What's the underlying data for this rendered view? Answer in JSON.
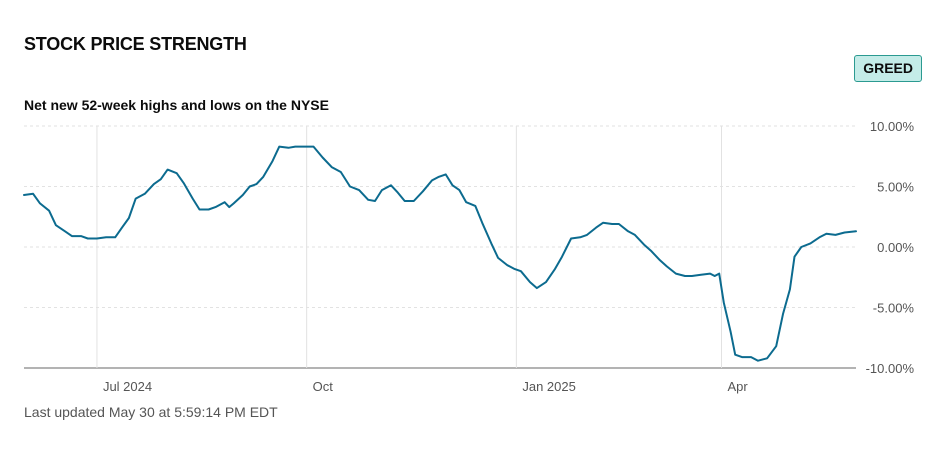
{
  "header": {
    "title": "STOCK PRICE STRENGTH",
    "badge": "GREED",
    "subtitle": "Net new 52-week highs and lows on the NYSE"
  },
  "footer": {
    "updated": "Last updated May 30 at 5:59:14 PM EDT"
  },
  "colors": {
    "line": "#0c6b8f",
    "badge_bg": "#c4ece8",
    "badge_border": "#2b9a91"
  },
  "chart_data": {
    "type": "line",
    "title": "Net new 52-week highs and lows on the NYSE",
    "x_ticks": [
      {
        "label": "Jul 2024",
        "x": "2024-07-01"
      },
      {
        "label": "Oct",
        "x": "2024-10-01"
      },
      {
        "label": "Jan 2025",
        "x": "2025-01-01"
      },
      {
        "label": "Apr",
        "x": "2025-04-01"
      }
    ],
    "y_ticks": [
      {
        "label": "10.00%",
        "value": 10
      },
      {
        "label": "5.00%",
        "value": 5
      },
      {
        "label": "0.00%",
        "value": 0
      },
      {
        "label": "-5.00%",
        "value": -5
      },
      {
        "label": "-10.00%",
        "value": -10
      }
    ],
    "xlim": [
      "2024-05-30",
      "2025-05-30"
    ],
    "ylim": [
      -10,
      10
    ],
    "grid": true,
    "series": [
      {
        "values": [
          {
            "x": "2024-05-30",
            "y": 4.3
          },
          {
            "x": "2024-06-03",
            "y": 4.4
          },
          {
            "x": "2024-06-06",
            "y": 3.6
          },
          {
            "x": "2024-06-10",
            "y": 3.0
          },
          {
            "x": "2024-06-13",
            "y": 1.8
          },
          {
            "x": "2024-06-17",
            "y": 1.3
          },
          {
            "x": "2024-06-20",
            "y": 0.9
          },
          {
            "x": "2024-06-24",
            "y": 0.9
          },
          {
            "x": "2024-06-27",
            "y": 0.7
          },
          {
            "x": "2024-07-01",
            "y": 0.7
          },
          {
            "x": "2024-07-05",
            "y": 0.8
          },
          {
            "x": "2024-07-09",
            "y": 0.8
          },
          {
            "x": "2024-07-12",
            "y": 1.6
          },
          {
            "x": "2024-07-15",
            "y": 2.4
          },
          {
            "x": "2024-07-18",
            "y": 4.0
          },
          {
            "x": "2024-07-22",
            "y": 4.4
          },
          {
            "x": "2024-07-26",
            "y": 5.2
          },
          {
            "x": "2024-07-29",
            "y": 5.6
          },
          {
            "x": "2024-08-01",
            "y": 6.4
          },
          {
            "x": "2024-08-05",
            "y": 6.1
          },
          {
            "x": "2024-08-08",
            "y": 5.3
          },
          {
            "x": "2024-08-12",
            "y": 4.0
          },
          {
            "x": "2024-08-15",
            "y": 3.1
          },
          {
            "x": "2024-08-19",
            "y": 3.1
          },
          {
            "x": "2024-08-22",
            "y": 3.3
          },
          {
            "x": "2024-08-26",
            "y": 3.7
          },
          {
            "x": "2024-08-28",
            "y": 3.3
          },
          {
            "x": "2024-08-30",
            "y": 3.6
          },
          {
            "x": "2024-09-03",
            "y": 4.3
          },
          {
            "x": "2024-09-06",
            "y": 5.0
          },
          {
            "x": "2024-09-09",
            "y": 5.2
          },
          {
            "x": "2024-09-12",
            "y": 5.8
          },
          {
            "x": "2024-09-16",
            "y": 7.1
          },
          {
            "x": "2024-09-19",
            "y": 8.3
          },
          {
            "x": "2024-09-23",
            "y": 8.2
          },
          {
            "x": "2024-09-26",
            "y": 8.3
          },
          {
            "x": "2024-09-30",
            "y": 8.3
          },
          {
            "x": "2024-10-04",
            "y": 8.3
          },
          {
            "x": "2024-10-08",
            "y": 7.4
          },
          {
            "x": "2024-10-12",
            "y": 6.6
          },
          {
            "x": "2024-10-16",
            "y": 6.2
          },
          {
            "x": "2024-10-20",
            "y": 5.0
          },
          {
            "x": "2024-10-24",
            "y": 4.7
          },
          {
            "x": "2024-10-28",
            "y": 3.9
          },
          {
            "x": "2024-10-31",
            "y": 3.8
          },
          {
            "x": "2024-11-03",
            "y": 4.7
          },
          {
            "x": "2024-11-07",
            "y": 5.1
          },
          {
            "x": "2024-11-10",
            "y": 4.5
          },
          {
            "x": "2024-11-13",
            "y": 3.8
          },
          {
            "x": "2024-11-17",
            "y": 3.8
          },
          {
            "x": "2024-11-21",
            "y": 4.6
          },
          {
            "x": "2024-11-25",
            "y": 5.5
          },
          {
            "x": "2024-11-28",
            "y": 5.8
          },
          {
            "x": "2024-12-01",
            "y": 6.0
          },
          {
            "x": "2024-12-04",
            "y": 5.1
          },
          {
            "x": "2024-12-07",
            "y": 4.7
          },
          {
            "x": "2024-12-10",
            "y": 3.7
          },
          {
            "x": "2024-12-14",
            "y": 3.4
          },
          {
            "x": "2024-12-17",
            "y": 2.0
          },
          {
            "x": "2024-12-21",
            "y": 0.3
          },
          {
            "x": "2024-12-24",
            "y": -0.9
          },
          {
            "x": "2024-12-28",
            "y": -1.5
          },
          {
            "x": "2024-12-31",
            "y": -1.8
          },
          {
            "x": "2025-01-03",
            "y": -2.0
          },
          {
            "x": "2025-01-07",
            "y": -2.9
          },
          {
            "x": "2025-01-10",
            "y": -3.4
          },
          {
            "x": "2025-01-14",
            "y": -2.9
          },
          {
            "x": "2025-01-18",
            "y": -1.8
          },
          {
            "x": "2025-01-21",
            "y": -0.8
          },
          {
            "x": "2025-01-25",
            "y": 0.7
          },
          {
            "x": "2025-01-29",
            "y": 0.8
          },
          {
            "x": "2025-02-01",
            "y": 1.0
          },
          {
            "x": "2025-02-05",
            "y": 1.6
          },
          {
            "x": "2025-02-08",
            "y": 2.0
          },
          {
            "x": "2025-02-12",
            "y": 1.9
          },
          {
            "x": "2025-02-15",
            "y": 1.9
          },
          {
            "x": "2025-02-19",
            "y": 1.3
          },
          {
            "x": "2025-02-22",
            "y": 1.0
          },
          {
            "x": "2025-02-26",
            "y": 0.2
          },
          {
            "x": "2025-03-01",
            "y": -0.3
          },
          {
            "x": "2025-03-05",
            "y": -1.1
          },
          {
            "x": "2025-03-08",
            "y": -1.6
          },
          {
            "x": "2025-03-12",
            "y": -2.2
          },
          {
            "x": "2025-03-16",
            "y": -2.4
          },
          {
            "x": "2025-03-19",
            "y": -2.4
          },
          {
            "x": "2025-03-23",
            "y": -2.3
          },
          {
            "x": "2025-03-27",
            "y": -2.2
          },
          {
            "x": "2025-03-29",
            "y": -2.4
          },
          {
            "x": "2025-03-31",
            "y": -2.2
          },
          {
            "x": "2025-04-02",
            "y": -4.6
          },
          {
            "x": "2025-04-05",
            "y": -7.0
          },
          {
            "x": "2025-04-07",
            "y": -8.9
          },
          {
            "x": "2025-04-10",
            "y": -9.1
          },
          {
            "x": "2025-04-14",
            "y": -9.1
          },
          {
            "x": "2025-04-17",
            "y": -9.4
          },
          {
            "x": "2025-04-21",
            "y": -9.2
          },
          {
            "x": "2025-04-25",
            "y": -8.2
          },
          {
            "x": "2025-04-28",
            "y": -5.5
          },
          {
            "x": "2025-05-01",
            "y": -3.5
          },
          {
            "x": "2025-05-03",
            "y": -0.8
          },
          {
            "x": "2025-05-06",
            "y": 0.0
          },
          {
            "x": "2025-05-10",
            "y": 0.3
          },
          {
            "x": "2025-05-14",
            "y": 0.8
          },
          {
            "x": "2025-05-17",
            "y": 1.1
          },
          {
            "x": "2025-05-21",
            "y": 1.0
          },
          {
            "x": "2025-05-25",
            "y": 1.2
          },
          {
            "x": "2025-05-30",
            "y": 1.3
          }
        ]
      }
    ]
  }
}
